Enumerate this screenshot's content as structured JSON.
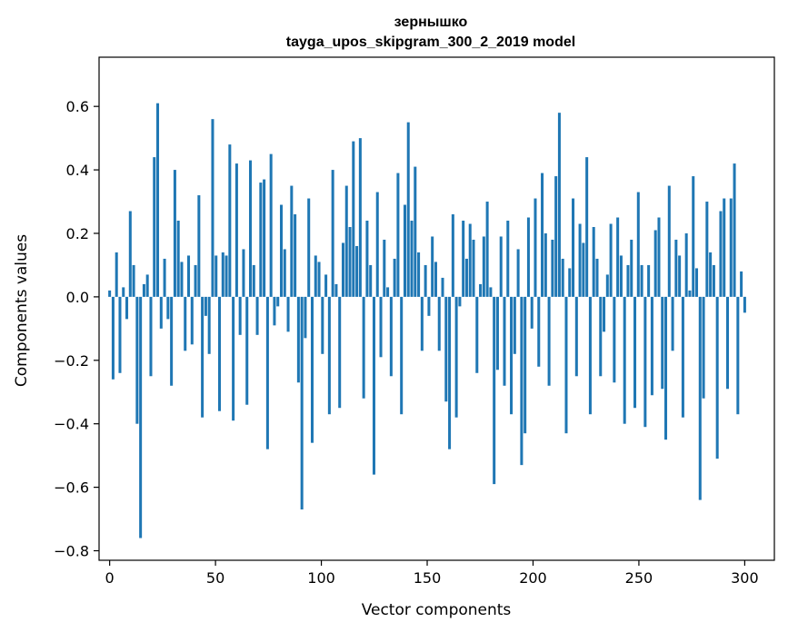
{
  "chart_data": {
    "type": "bar",
    "title": "зернышко",
    "subtitle": "tayga_upos_skipgram_300_2_2019 model",
    "xlabel": "Vector components",
    "ylabel": "Components values",
    "xlim": [
      -5,
      314
    ],
    "ylim": [
      -0.83,
      0.755
    ],
    "xticks": [
      0,
      50,
      100,
      150,
      200,
      250,
      300
    ],
    "yticks": [
      -0.8,
      -0.6,
      -0.4,
      -0.2,
      0.0,
      0.2,
      0.4,
      0.6
    ],
    "ytick_labels": [
      "−0.8",
      "−0.6",
      "−0.4",
      "−0.2",
      "0.0",
      "0.2",
      "0.4",
      "0.6"
    ],
    "grid": false,
    "color": "#1f77b4",
    "values": [
      0.02,
      -0.26,
      0.14,
      -0.24,
      0.03,
      -0.07,
      0.27,
      0.1,
      -0.4,
      -0.76,
      0.04,
      0.07,
      -0.25,
      0.44,
      0.61,
      -0.1,
      0.12,
      -0.07,
      -0.28,
      0.4,
      0.24,
      0.11,
      -0.17,
      0.13,
      -0.15,
      0.1,
      0.32,
      -0.38,
      -0.06,
      -0.18,
      0.56,
      0.13,
      -0.36,
      0.14,
      0.13,
      0.48,
      -0.39,
      0.42,
      -0.12,
      0.15,
      -0.34,
      0.43,
      0.1,
      -0.12,
      0.36,
      0.37,
      -0.48,
      0.45,
      -0.09,
      -0.03,
      0.29,
      0.15,
      -0.11,
      0.35,
      0.26,
      -0.27,
      -0.67,
      -0.13,
      0.31,
      -0.46,
      0.13,
      0.11,
      -0.18,
      0.07,
      -0.37,
      0.4,
      0.04,
      -0.35,
      0.17,
      0.35,
      0.22,
      0.49,
      0.16,
      0.5,
      -0.32,
      0.24,
      0.1,
      -0.56,
      0.33,
      -0.19,
      0.18,
      0.03,
      -0.25,
      0.12,
      0.39,
      -0.37,
      0.29,
      0.55,
      0.24,
      0.41,
      0.14,
      -0.17,
      0.1,
      -0.06,
      0.19,
      0.11,
      -0.17,
      0.06,
      -0.33,
      -0.48,
      0.26,
      -0.38,
      -0.03,
      0.24,
      0.12,
      0.23,
      0.18,
      -0.24,
      0.04,
      0.19,
      0.3,
      0.03,
      -0.59,
      -0.23,
      0.19,
      -0.28,
      0.24,
      -0.37,
      -0.18,
      0.15,
      -0.53,
      -0.43,
      0.25,
      -0.1,
      0.31,
      -0.22,
      0.39,
      0.2,
      -0.28,
      0.18,
      0.38,
      0.58,
      0.12,
      -0.43,
      0.09,
      0.31,
      -0.25,
      0.23,
      0.17,
      0.44,
      -0.37,
      0.22,
      0.12,
      -0.25,
      -0.11,
      0.07,
      0.23,
      -0.27,
      0.25,
      0.13,
      -0.4,
      0.1,
      0.18,
      -0.35,
      0.33,
      0.1,
      -0.41,
      0.1,
      -0.31,
      0.21,
      0.25,
      -0.29,
      -0.45,
      0.35,
      -0.17,
      0.18,
      0.13,
      -0.38,
      0.2,
      0.02,
      0.38,
      0.09,
      -0.64,
      -0.32,
      0.3,
      0.14,
      0.1,
      -0.51,
      0.27,
      0.31,
      -0.29,
      0.31,
      0.42,
      -0.37,
      0.08,
      -0.05
    ],
    "annotations": []
  }
}
